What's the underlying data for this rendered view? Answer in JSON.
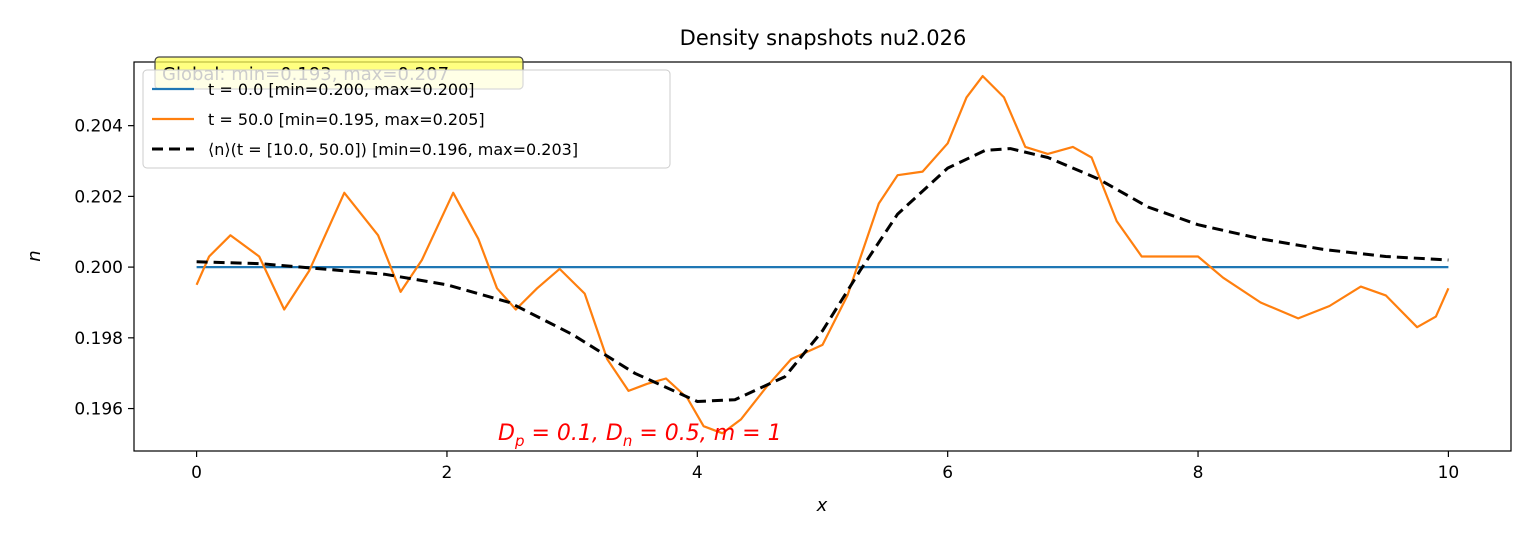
{
  "chart_data": {
    "type": "line",
    "title": "Density snapshots nu2.026",
    "xlabel": "x",
    "ylabel": "n",
    "xlim": [
      -0.5,
      10.5
    ],
    "ylim": [
      0.1948,
      0.2058
    ],
    "xticks": [
      0,
      2,
      4,
      6,
      8,
      10
    ],
    "xtick_labels": [
      "0",
      "2",
      "4",
      "6",
      "8",
      "10"
    ],
    "yticks": [
      0.196,
      0.198,
      0.2,
      0.202,
      0.204
    ],
    "ytick_labels": [
      "0.196",
      "0.198",
      "0.200",
      "0.202",
      "0.204"
    ],
    "grid": false,
    "legend_position": "top-left",
    "global_box_text": "Global: min=0.193, max=0.207",
    "annotation": {
      "text": "D_p = 0.1, D_n = 0.5, m = 1",
      "color": "#ff0000"
    },
    "series": [
      {
        "name": "t = 0.0 [min=0.200, max=0.200]",
        "color": "#1f77b4",
        "style": "solid",
        "x": [
          0,
          10
        ],
        "y": [
          0.2,
          0.2
        ]
      },
      {
        "name": "t = 50.0 [min=0.195, max=0.205]",
        "color": "#ff7f0e",
        "style": "solid",
        "x": [
          0,
          0.1,
          0.27,
          0.5,
          0.7,
          0.9,
          1.18,
          1.45,
          1.63,
          1.8,
          2.05,
          2.25,
          2.4,
          2.55,
          2.72,
          2.9,
          3.1,
          3.28,
          3.45,
          3.6,
          3.75,
          3.92,
          4.05,
          4.2,
          4.35,
          4.55,
          4.75,
          5.0,
          5.2,
          5.45,
          5.6,
          5.8,
          6.0,
          6.15,
          6.28,
          6.45,
          6.62,
          6.8,
          7.0,
          7.15,
          7.35,
          7.55,
          7.75,
          8.0,
          8.2,
          8.5,
          8.8,
          9.05,
          9.3,
          9.5,
          9.75,
          9.9,
          10.0
        ],
        "y": [
          0.1995,
          0.2003,
          0.2009,
          0.2003,
          0.1988,
          0.1999,
          0.2021,
          0.2009,
          0.1993,
          0.2002,
          0.2021,
          0.2008,
          0.1994,
          0.1988,
          0.1994,
          0.19995,
          0.19925,
          0.1974,
          0.1965,
          0.1967,
          0.19685,
          0.1963,
          0.1955,
          0.1953,
          0.1957,
          0.1966,
          0.1974,
          0.1978,
          0.1992,
          0.2018,
          0.2026,
          0.2027,
          0.2035,
          0.2048,
          0.2054,
          0.2048,
          0.2034,
          0.2032,
          0.2034,
          0.2031,
          0.2013,
          0.2003,
          0.2003,
          0.2003,
          0.1997,
          0.199,
          0.19855,
          0.1989,
          0.19945,
          0.1992,
          0.1983,
          0.1986,
          0.1994
        ]
      },
      {
        "name": "⟨n⟩(t = [10.0, 50.0]) [min=0.196, max=0.203]",
        "color": "#000000",
        "style": "dashed",
        "x": [
          0,
          0.5,
          1,
          1.5,
          2,
          2.5,
          3,
          3.5,
          4,
          4.3,
          4.7,
          5,
          5.3,
          5.6,
          6,
          6.3,
          6.5,
          6.8,
          7.2,
          7.6,
          8,
          8.5,
          9,
          9.5,
          10
        ],
        "y": [
          0.20015,
          0.2001,
          0.19995,
          0.1998,
          0.1995,
          0.199,
          0.1981,
          0.197,
          0.1962,
          0.19625,
          0.1969,
          0.1982,
          0.1999,
          0.2015,
          0.2028,
          0.2033,
          0.20335,
          0.2031,
          0.2025,
          0.2017,
          0.2012,
          0.2008,
          0.2005,
          0.2003,
          0.2002
        ]
      }
    ]
  }
}
